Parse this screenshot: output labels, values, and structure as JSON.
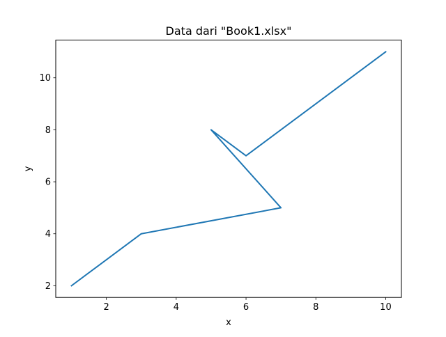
{
  "chart_data": {
    "type": "line",
    "title": "Data dari \"Book1.xlsx\"",
    "xlabel": "x",
    "ylabel": "y",
    "xlim": [
      0.55,
      10.45
    ],
    "ylim": [
      1.55,
      11.45
    ],
    "x_ticks": [
      2,
      4,
      6,
      8,
      10
    ],
    "y_ticks": [
      2,
      4,
      6,
      8,
      10
    ],
    "grid": false,
    "series": [
      {
        "color": "#1f77b4",
        "x": [
          1,
          3,
          7,
          5,
          6,
          10
        ],
        "y": [
          2,
          4,
          5,
          8,
          7,
          11
        ]
      }
    ]
  }
}
